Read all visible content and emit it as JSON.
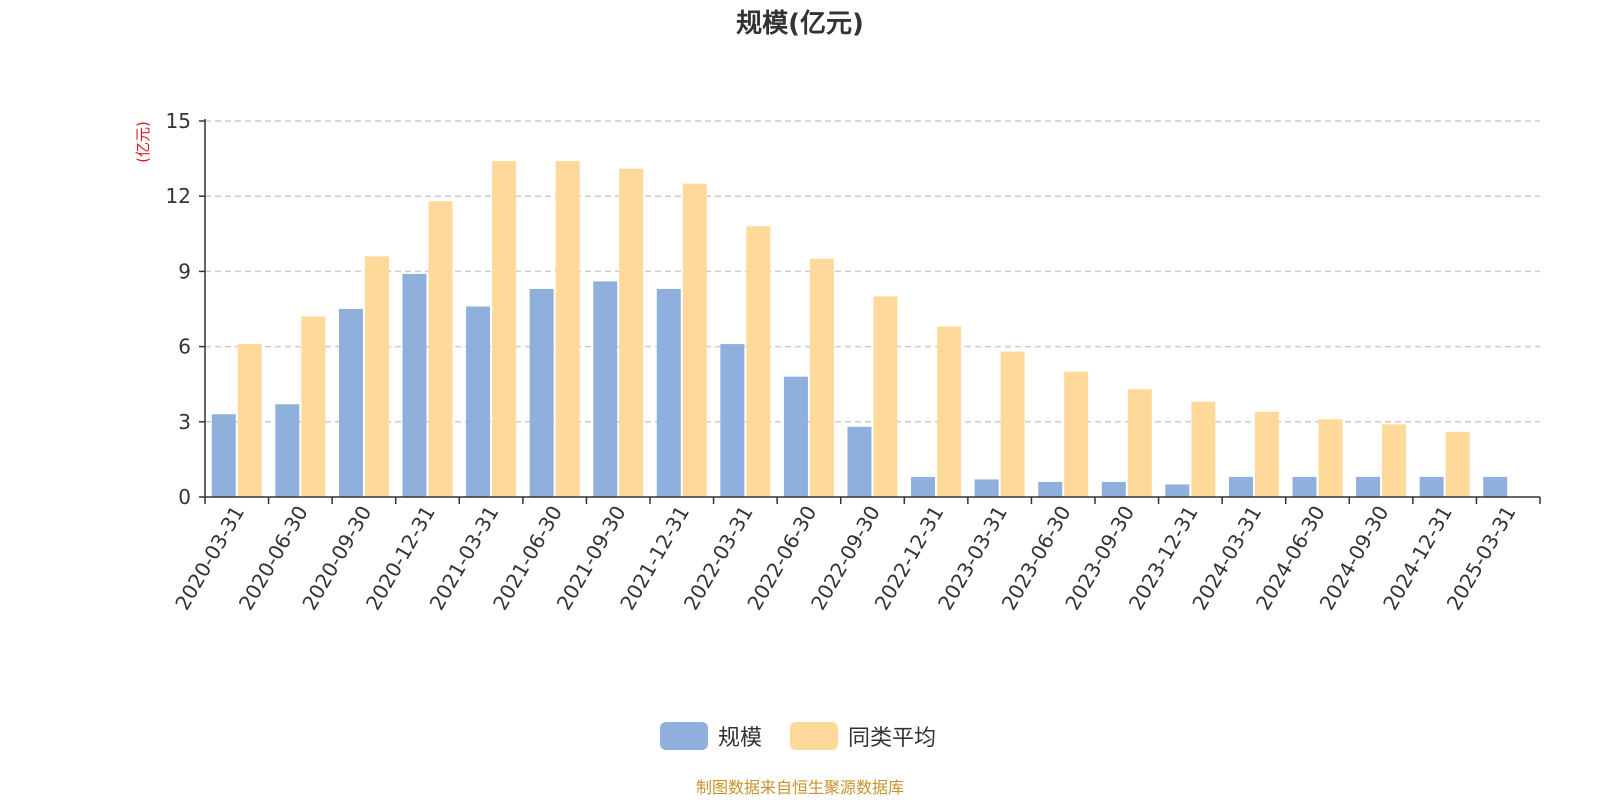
{
  "chart_data": {
    "type": "bar",
    "title": "规模(亿元)",
    "ylabel": "(亿元)",
    "ylim": [
      0,
      15
    ],
    "yticks": [
      "0",
      "3",
      "6",
      "9",
      "12",
      "15"
    ],
    "grid": true,
    "legend_position": "bottom",
    "categories": [
      "2020-03-31",
      "2020-06-30",
      "2020-09-30",
      "2020-12-31",
      "2021-03-31",
      "2021-06-30",
      "2021-09-30",
      "2021-12-31",
      "2022-03-31",
      "2022-06-30",
      "2022-09-30",
      "2022-12-31",
      "2023-03-31",
      "2023-06-30",
      "2023-09-30",
      "2023-12-31",
      "2024-03-31",
      "2024-06-30",
      "2024-09-30",
      "2024-12-31",
      "2025-03-31"
    ],
    "series": [
      {
        "name": "规模",
        "color": "#8fafdc",
        "values": [
          3.3,
          3.7,
          7.5,
          8.9,
          7.6,
          8.3,
          8.6,
          8.3,
          6.1,
          4.8,
          2.8,
          0.8,
          0.7,
          0.6,
          0.6,
          0.5,
          0.8,
          0.8,
          0.8,
          0.8,
          0.8
        ]
      },
      {
        "name": "同类平均",
        "color": "#ffd99a",
        "values": [
          6.1,
          7.2,
          9.6,
          11.8,
          13.4,
          13.4,
          13.1,
          12.5,
          10.8,
          9.5,
          8.0,
          6.8,
          5.8,
          5.0,
          4.3,
          3.8,
          3.4,
          3.1,
          2.9,
          2.6,
          null
        ]
      }
    ]
  },
  "source_text": "制图数据来自恒生聚源数据库"
}
